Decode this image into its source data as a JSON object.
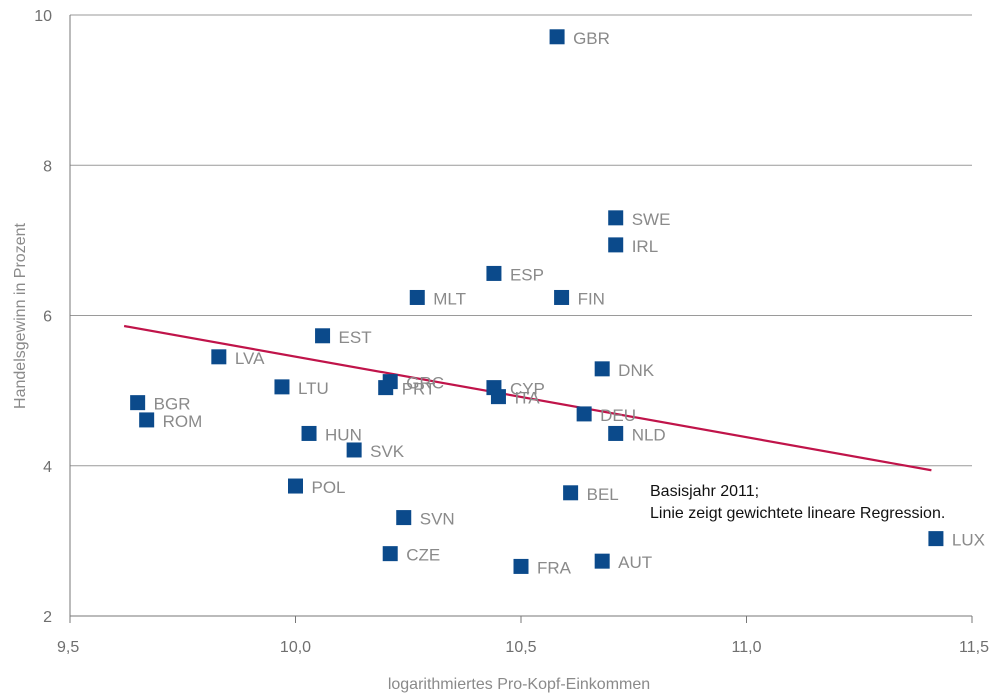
{
  "chart_data": {
    "type": "scatter",
    "xlabel": "logarithmiertes Pro-Kopf-Einkommen",
    "ylabel": "Handelsgewinn in Prozent",
    "xlim": [
      9.5,
      11.5
    ],
    "ylim": [
      2,
      10
    ],
    "x_ticks": [
      9.5,
      10.0,
      10.5,
      11.0,
      11.5
    ],
    "x_tick_labels": [
      "9,5",
      "10,0",
      "10,5",
      "11,0",
      "11,5"
    ],
    "y_ticks": [
      2,
      4,
      6,
      8,
      10
    ],
    "y_tick_labels": [
      "2",
      "4",
      "6",
      "8",
      "10"
    ],
    "grid": "horizontal",
    "colors": {
      "marker": "#0b4a8b",
      "regression": "#c0144a",
      "grid": "#9a9a9a",
      "label": "#8a8a8a"
    },
    "points": [
      {
        "label": "GBR",
        "x": 10.58,
        "y": 9.71
      },
      {
        "label": "SWE",
        "x": 10.71,
        "y": 7.3
      },
      {
        "label": "IRL",
        "x": 10.71,
        "y": 6.94
      },
      {
        "label": "ESP",
        "x": 10.44,
        "y": 6.56
      },
      {
        "label": "MLT",
        "x": 10.27,
        "y": 6.24
      },
      {
        "label": "FIN",
        "x": 10.59,
        "y": 6.24
      },
      {
        "label": "EST",
        "x": 10.06,
        "y": 5.73
      },
      {
        "label": "LVA",
        "x": 9.83,
        "y": 5.45
      },
      {
        "label": "DNK",
        "x": 10.68,
        "y": 5.29
      },
      {
        "label": "CYP",
        "x": 10.44,
        "y": 5.04
      },
      {
        "label": "GRC",
        "x": 10.21,
        "y": 5.12
      },
      {
        "label": "LTU",
        "x": 9.97,
        "y": 5.05
      },
      {
        "label": "PRT",
        "x": 10.2,
        "y": 5.04
      },
      {
        "label": "ITA",
        "x": 10.45,
        "y": 4.92
      },
      {
        "label": "BGR",
        "x": 9.65,
        "y": 4.84
      },
      {
        "label": "DEU",
        "x": 10.64,
        "y": 4.69
      },
      {
        "label": "ROM",
        "x": 9.67,
        "y": 4.61
      },
      {
        "label": "HUN",
        "x": 10.03,
        "y": 4.43
      },
      {
        "label": "NLD",
        "x": 10.71,
        "y": 4.43
      },
      {
        "label": "SVK",
        "x": 10.13,
        "y": 4.21
      },
      {
        "label": "POL",
        "x": 10.0,
        "y": 3.73
      },
      {
        "label": "BEL",
        "x": 10.61,
        "y": 3.64
      },
      {
        "label": "SVN",
        "x": 10.24,
        "y": 3.31
      },
      {
        "label": "LUX",
        "x": 11.42,
        "y": 3.03
      },
      {
        "label": "CZE",
        "x": 10.21,
        "y": 2.83
      },
      {
        "label": "AUT",
        "x": 10.68,
        "y": 2.73
      },
      {
        "label": "FRA",
        "x": 10.5,
        "y": 2.66
      }
    ],
    "regression": {
      "x": [
        9.62,
        11.41
      ],
      "y": [
        5.86,
        3.94
      ]
    },
    "annotation": [
      "Basisjahr 2011;",
      "Linie zeigt gewichtete lineare Regression."
    ]
  }
}
